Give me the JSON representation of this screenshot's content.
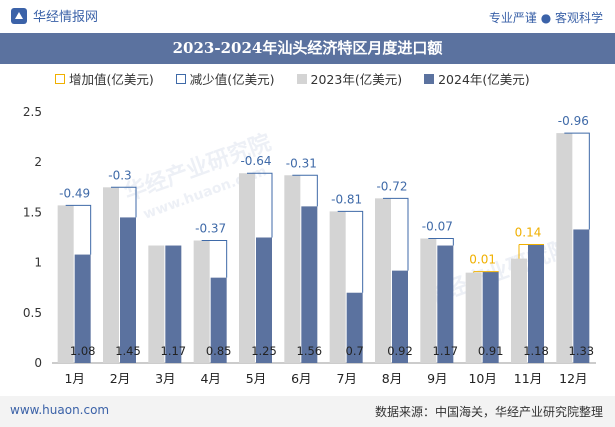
{
  "header": {
    "brand": "华经情报网",
    "tagline": "专业严谨 ● 客观科学"
  },
  "chart_data": {
    "type": "bar",
    "title": "2023-2024年汕头经济特区月度进口额",
    "categories": [
      "1月",
      "2月",
      "3月",
      "4月",
      "5月",
      "6月",
      "7月",
      "8月",
      "9月",
      "10月",
      "11月",
      "12月"
    ],
    "series": [
      {
        "name": "2023年(亿美元)",
        "values": [
          1.57,
          1.75,
          1.17,
          1.22,
          1.89,
          1.87,
          1.51,
          1.64,
          1.24,
          0.9,
          1.04,
          2.29
        ],
        "color": "#d4d4d4"
      },
      {
        "name": "2024年(亿美元)",
        "values": [
          1.08,
          1.45,
          1.17,
          0.85,
          1.25,
          1.56,
          0.7,
          0.92,
          1.17,
          0.91,
          1.18,
          1.33
        ],
        "color": "#5b729f"
      }
    ],
    "value_labels": [
      "1.08",
      "1.45",
      "1.17",
      "0.85",
      "1.25",
      "1.56",
      "0.7",
      "0.92",
      "1.17",
      "0.91",
      "1.18",
      "1.33"
    ],
    "change_labels": [
      "-0.49",
      "-0.3",
      "",
      "-0.37",
      "-0.64",
      "-0.31",
      "-0.81",
      "-0.72",
      "-0.07",
      "0.01",
      "0.14",
      "-0.96"
    ],
    "legend": [
      "增加值(亿美元)",
      "减少值(亿美元)",
      "2023年(亿美元)",
      "2024年(亿美元)"
    ],
    "increase_color": "#f0b000",
    "decrease_color": "#3f6aa8",
    "y_ticks": [
      "0",
      "0.5",
      "1",
      "1.5",
      "2",
      "2.5"
    ],
    "ylim": [
      0,
      2.5
    ],
    "grid": false,
    "legend_position": "top"
  },
  "watermarks": [
    "华经产业研究院",
    "www.huaon.com",
    "华经产业研究院"
  ],
  "footer": {
    "site": "www.huaon.com",
    "source": "数据来源：中国海关，华经产业研究院整理"
  }
}
